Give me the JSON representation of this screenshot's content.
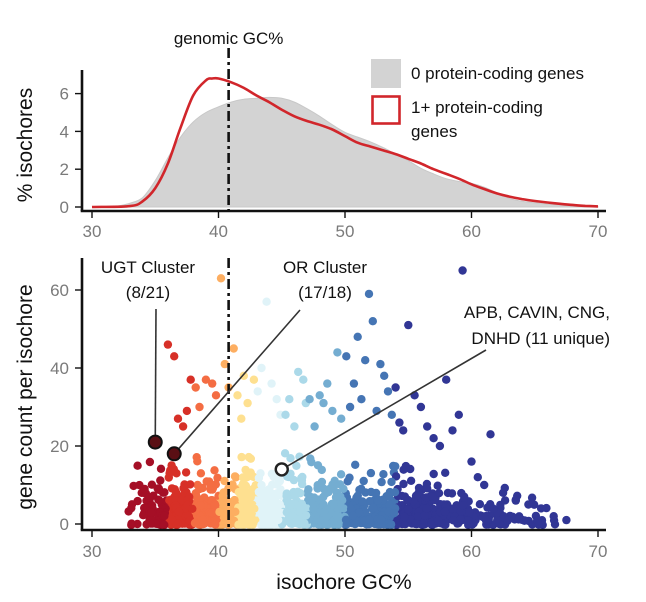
{
  "chart_data": [
    {
      "type": "area",
      "panel": "density",
      "ylabel": "% isochores",
      "xlim": [
        30,
        70
      ],
      "ylim": [
        0,
        7.2
      ],
      "x_ticks": [
        30,
        40,
        50,
        60,
        70
      ],
      "y_ticks": [
        0,
        2,
        4,
        6
      ],
      "vline": {
        "x": 40.8,
        "label": "genomic GC%"
      },
      "legend_position": "top-right",
      "series": [
        {
          "name": "0 protein-coding genes",
          "style": "filled-area",
          "color": "#d3d3d3",
          "x": [
            30,
            32,
            33,
            34,
            35,
            36,
            37,
            38,
            39,
            40,
            41,
            42,
            43,
            44,
            45,
            46,
            47,
            48,
            49,
            50,
            51,
            52,
            53,
            54,
            55,
            56,
            57,
            58,
            59,
            60,
            61,
            62,
            63,
            64,
            65,
            66,
            67,
            68,
            69,
            70
          ],
          "values": [
            0,
            0.05,
            0.2,
            0.5,
            1.4,
            2.6,
            3.7,
            4.5,
            5.0,
            5.3,
            5.55,
            5.7,
            5.75,
            5.8,
            5.75,
            5.55,
            5.2,
            4.8,
            4.35,
            3.95,
            3.7,
            3.45,
            3.15,
            2.8,
            2.45,
            2.05,
            1.75,
            1.5,
            1.35,
            1.25,
            1.05,
            0.75,
            0.45,
            0.3,
            0.22,
            0.15,
            0.1,
            0.06,
            0.03,
            0.01
          ]
        },
        {
          "name": "1+ protein-coding genes",
          "style": "line",
          "color": "#d1262b",
          "x": [
            30,
            33,
            34,
            35,
            36,
            37,
            38,
            39,
            39.5,
            40,
            41,
            42,
            43,
            44,
            45,
            46,
            47,
            48,
            49,
            50,
            51,
            52,
            53,
            54,
            55,
            56,
            57,
            58,
            59,
            60,
            61,
            62,
            63,
            64,
            65,
            66,
            67,
            68,
            69,
            70
          ],
          "values": [
            0,
            0.05,
            0.3,
            1.0,
            2.3,
            4.2,
            5.9,
            6.7,
            6.8,
            6.8,
            6.6,
            6.3,
            5.9,
            5.55,
            5.15,
            4.8,
            4.55,
            4.35,
            4.1,
            3.75,
            3.4,
            3.2,
            3.0,
            2.8,
            2.55,
            2.3,
            2.0,
            1.75,
            1.5,
            1.2,
            0.95,
            0.72,
            0.55,
            0.42,
            0.32,
            0.24,
            0.17,
            0.11,
            0.06,
            0.03
          ]
        }
      ]
    },
    {
      "type": "scatter",
      "panel": "scatter",
      "xlabel": "isochore GC%",
      "ylabel": "gene count per isochore",
      "xlim": [
        30,
        70
      ],
      "ylim": [
        0,
        68
      ],
      "x_ticks": [
        30,
        40,
        50,
        60,
        70
      ],
      "y_ticks": [
        0,
        20,
        40,
        60
      ],
      "vline": {
        "x": 40.8
      },
      "color_bins": [
        {
          "gc_min": 30,
          "gc_max": 36,
          "color": "#a50f26"
        },
        {
          "gc_min": 36,
          "gc_max": 38,
          "color": "#d73027"
        },
        {
          "gc_min": 38,
          "gc_max": 40,
          "color": "#f46d43"
        },
        {
          "gc_min": 40,
          "gc_max": 41.5,
          "color": "#fdae61"
        },
        {
          "gc_min": 41.5,
          "gc_max": 43,
          "color": "#fee090"
        },
        {
          "gc_min": 43,
          "gc_max": 45,
          "color": "#e0f3f8"
        },
        {
          "gc_min": 45,
          "gc_max": 47,
          "color": "#abd9e9"
        },
        {
          "gc_min": 47,
          "gc_max": 50,
          "color": "#74add1"
        },
        {
          "gc_min": 50,
          "gc_max": 54,
          "color": "#4575b4"
        },
        {
          "gc_min": 54,
          "gc_max": 70,
          "color": "#313695"
        }
      ],
      "outliers": [
        [
          36,
          46
        ],
        [
          36.5,
          43
        ],
        [
          36.8,
          27
        ],
        [
          37.2,
          25
        ],
        [
          37.5,
          29
        ],
        [
          37.8,
          37
        ],
        [
          38.2,
          35
        ],
        [
          38.5,
          30
        ],
        [
          39,
          37
        ],
        [
          39.5,
          36
        ],
        [
          39.8,
          33
        ],
        [
          40.2,
          63
        ],
        [
          40.5,
          41
        ],
        [
          40.8,
          35
        ],
        [
          41.2,
          45
        ],
        [
          41.5,
          33
        ],
        [
          41.8,
          27
        ],
        [
          42,
          38
        ],
        [
          42.3,
          31
        ],
        [
          42.8,
          37
        ],
        [
          43.1,
          34
        ],
        [
          43.4,
          40
        ],
        [
          43.8,
          57
        ],
        [
          44.2,
          36
        ],
        [
          44.6,
          32
        ],
        [
          44.9,
          28
        ],
        [
          45.3,
          28
        ],
        [
          45.6,
          32
        ],
        [
          46.0,
          25
        ],
        [
          46.3,
          39
        ],
        [
          46.7,
          37
        ],
        [
          46.9,
          31
        ],
        [
          47.2,
          32
        ],
        [
          47.6,
          25
        ],
        [
          48.0,
          33
        ],
        [
          48.3,
          31
        ],
        [
          48.6,
          36
        ],
        [
          49.0,
          29
        ],
        [
          49.4,
          44
        ],
        [
          49.7,
          27
        ],
        [
          50.1,
          43
        ],
        [
          50.4,
          30
        ],
        [
          50.7,
          36
        ],
        [
          51.0,
          48
        ],
        [
          51.3,
          32
        ],
        [
          51.6,
          42
        ],
        [
          51.9,
          59
        ],
        [
          52.2,
          52
        ],
        [
          52.5,
          29
        ],
        [
          52.8,
          41
        ],
        [
          53.1,
          38
        ],
        [
          53.4,
          34
        ],
        [
          53.7,
          28
        ],
        [
          54.0,
          35
        ],
        [
          54.3,
          26
        ],
        [
          54.6,
          24
        ],
        [
          55.0,
          51
        ],
        [
          55.5,
          33
        ],
        [
          56.0,
          30
        ],
        [
          56.5,
          25
        ],
        [
          57.0,
          22
        ],
        [
          57.5,
          20
        ],
        [
          58.0,
          37
        ],
        [
          58.5,
          24
        ],
        [
          59.0,
          28
        ],
        [
          59.3,
          65
        ],
        [
          60.0,
          16
        ],
        [
          60.5,
          12
        ],
        [
          61.0,
          10
        ],
        [
          61.5,
          23
        ],
        [
          62.5,
          8
        ],
        [
          63.5,
          6
        ],
        [
          64.5,
          5
        ],
        [
          65.5,
          4
        ],
        [
          66.5,
          2
        ],
        [
          67.5,
          1
        ]
      ],
      "highlights": [
        {
          "x": 35.0,
          "y": 21,
          "label": "UGT Cluster (8/21)",
          "style": "dark-filled"
        },
        {
          "x": 36.5,
          "y": 18,
          "label": "OR Cluster (17/18)",
          "style": "dark-filled"
        },
        {
          "x": 45.0,
          "y": 14,
          "label": "APB, CAVIN, CNG, DNHD (11 unique)",
          "style": "open-circle"
        }
      ]
    }
  ],
  "top_panel": {
    "vline_label": "genomic GC%",
    "ylabel": "% isochores",
    "legend": {
      "zero_label": "0 protein-coding genes",
      "one_plus_line1": "1+ protein-coding",
      "one_plus_line2": "genes"
    },
    "x_tick_labels": [
      "30",
      "40",
      "50",
      "60",
      "70"
    ],
    "y_tick_labels": [
      "0",
      "2",
      "4",
      "6"
    ]
  },
  "bottom_panel": {
    "xlabel": "isochore GC%",
    "ylabel": "gene count per isochore",
    "x_tick_labels": [
      "30",
      "40",
      "50",
      "60",
      "70"
    ],
    "y_tick_labels": [
      "0",
      "20",
      "40",
      "60"
    ],
    "annotations": {
      "ugt_line1": "UGT Cluster",
      "ugt_line2": "(8/21)",
      "or_line1": "OR Cluster",
      "or_line2": "(17/18)",
      "apb_line1": "APB, CAVIN, CNG,",
      "apb_line2": "DNHD (11 unique)"
    }
  },
  "colors": {
    "area_fill": "#d3d3d3",
    "red_line": "#d1262b",
    "axis": "#111111",
    "tick_text": "#7a7a7a",
    "highlight_fill": "#5a0f14"
  }
}
